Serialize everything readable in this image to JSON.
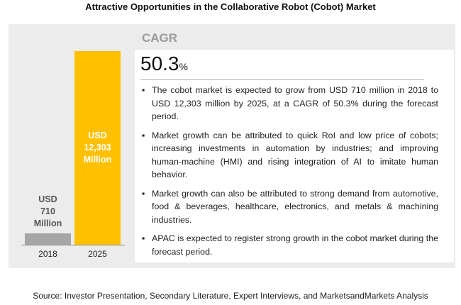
{
  "chart_data": {
    "type": "bar",
    "title": "Attractive Opportunities in the Collaborative Robot (Cobot) Market",
    "categories": [
      "2018",
      "2025"
    ],
    "values": [
      710,
      12303
    ],
    "value_labels": [
      "USD 710 Million",
      "USD 12,303 Million"
    ],
    "colors": [
      "#a6a6a6",
      "#ffc000"
    ],
    "cagr": {
      "label": "CAGR",
      "value": "50.3",
      "unit": "%"
    },
    "bullets": [
      "The cobot market is expected to grow from USD 710 million in 2018 to USD 12,303 million by 2025, at a CAGR of 50.3% during the forecast period.",
      "Market growth can be attributed to quick RoI and low price of cobots; increasing investments in automation by industries; and improving human-machine (HMI) and rising integration of AI to imitate human behavior.",
      "Market growth can also be attributed to strong demand from automotive, food & beverages, healthcare, electronics, and metals & machining industries.",
      "APAC is expected to register strong growth in the cobot market during the forecast period."
    ],
    "source": "Source: Investor Presentation, Secondary Literature, Expert Interviews, and MarketsandMarkets Analysis"
  }
}
